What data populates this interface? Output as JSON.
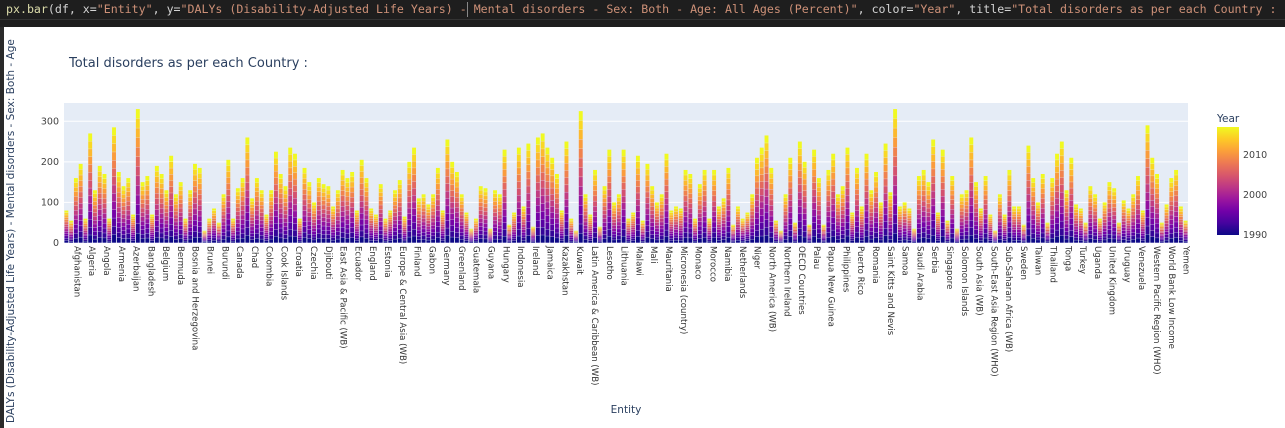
{
  "code": {
    "fn": "px.bar",
    "args_a": "(df, x=",
    "x_arg": "\"Entity\"",
    "args_b": ", y=",
    "y_arg": "\"DALYs (Disability-Adjusted Life Years) - Mental disorders - Sex: Both - Age: All Ages (Percent)\"",
    "args_c": ", color=",
    "color_arg": "\"Year\"",
    "args_d": ", title=",
    "title_arg": "\"Total disorders as per each Country : \"",
    "args_e": ")"
  },
  "colors": {
    "plot_bg": "#e5ecf6",
    "grid": "#ffffff",
    "colorscale": [
      "#0d0887",
      "#46039f",
      "#7201a8",
      "#9c179e",
      "#bd3786",
      "#d8576b",
      "#ed7953",
      "#fb9f3a",
      "#fdca26",
      "#f0f921"
    ]
  },
  "chart_data": {
    "type": "bar",
    "title": "Total disorders as per each Country :",
    "xlabel": "Entity",
    "ylabel": "DALYs (Disability-Adjusted Life Years) - Mental disorders - Sex: Both - Age",
    "ylim": [
      0,
      345
    ],
    "yticks": [
      0,
      100,
      200,
      300
    ],
    "color_axis": {
      "title": "Year",
      "range": [
        1990,
        2017
      ],
      "ticks": [
        1990,
        2000,
        2010
      ]
    },
    "labeled_entities": [
      "Afghanistan",
      "Algeria",
      "Angola",
      "Armenia",
      "Azerbaijan",
      "Bangladesh",
      "Belgium",
      "Bermuda",
      "Bosnia and Herzegovina",
      "Brunei",
      "Burundi",
      "Canada",
      "Chad",
      "Colombia",
      "Cook Islands",
      "Croatia",
      "Czechia",
      "Djibouti",
      "East Asia & Pacific (WB)",
      "Ecuador",
      "England",
      "Estonia",
      "Europe & Central Asia (WB)",
      "Finland",
      "Gabon",
      "Germany",
      "Greenland",
      "Guatemala",
      "Guyana",
      "Hungary",
      "Indonesia",
      "Ireland",
      "Jamaica",
      "Kazakhstan",
      "Kuwait",
      "Latin America & Caribbean (WB)",
      "Lesotho",
      "Lithuania",
      "Malawi",
      "Mali",
      "Mauritania",
      "Micronesia (country)",
      "Monaco",
      "Morocco",
      "Namibia",
      "Netherlands",
      "Niger",
      "North America (WB)",
      "Northern Ireland",
      "OECD Countries",
      "Palau",
      "Papua New Guinea",
      "Philippines",
      "Puerto Rico",
      "Romania",
      "Saint Kitts and Nevis",
      "Samoa",
      "Saudi Arabia",
      "Serbia",
      "Singapore",
      "Solomon Islands",
      "South Asia (WB)",
      "South-East Asia Region (WHO)",
      "Sub-Saharan Africa (WB)",
      "Sweden",
      "Taiwan",
      "Thailand",
      "Tonga",
      "Turkey",
      "Uganda",
      "United Kingdom",
      "Uruguay",
      "Venezuela",
      "Western Pacific Region (WHO)",
      "World Bank Low Income",
      "Yemen"
    ],
    "total_bars": 228,
    "values": [
      80,
      55,
      160,
      195,
      60,
      270,
      130,
      190,
      170,
      60,
      285,
      175,
      140,
      160,
      70,
      330,
      150,
      165,
      70,
      190,
      170,
      130,
      215,
      120,
      150,
      60,
      130,
      195,
      185,
      30,
      60,
      85,
      50,
      120,
      205,
      60,
      135,
      160,
      260,
      110,
      160,
      130,
      70,
      130,
      225,
      170,
      140,
      235,
      220,
      60,
      185,
      150,
      100,
      160,
      145,
      140,
      90,
      130,
      180,
      160,
      175,
      80,
      205,
      160,
      85,
      70,
      145,
      60,
      80,
      130,
      155,
      65,
      200,
      235,
      110,
      120,
      95,
      120,
      185,
      80,
      255,
      200,
      175,
      120,
      75,
      35,
      60,
      140,
      135,
      35,
      130,
      120,
      230,
      45,
      75,
      235,
      90,
      245,
      40,
      260,
      270,
      235,
      210,
      170,
      80,
      250,
      60,
      30,
      325,
      120,
      70,
      180,
      40,
      140,
      230,
      100,
      120,
      230,
      60,
      75,
      215,
      55,
      195,
      140,
      100,
      120,
      220,
      80,
      90,
      85,
      180,
      170,
      60,
      145,
      180,
      60,
      180,
      90,
      110,
      185,
      45,
      90,
      60,
      75,
      120,
      210,
      235,
      265,
      185,
      55,
      30,
      120,
      210,
      50,
      250,
      200,
      45,
      230,
      160,
      45,
      180,
      220,
      120,
      140,
      235,
      75,
      185,
      90,
      220,
      130,
      175,
      100,
      245,
      125,
      330,
      90,
      100,
      85,
      35,
      165,
      180,
      150,
      255,
      75,
      230,
      55,
      165,
      35,
      120,
      130,
      260,
      150,
      85,
      165,
      70,
      30,
      120,
      70,
      180,
      90,
      90,
      45,
      240,
      160,
      100,
      170,
      50,
      160,
      220,
      250,
      130,
      210,
      95,
      85,
      50,
      140,
      120,
      60,
      100,
      150,
      135,
      50,
      105,
      85,
      120,
      165,
      80,
      290,
      210,
      170,
      50,
      95,
      160,
      180,
      90,
      55
    ]
  }
}
